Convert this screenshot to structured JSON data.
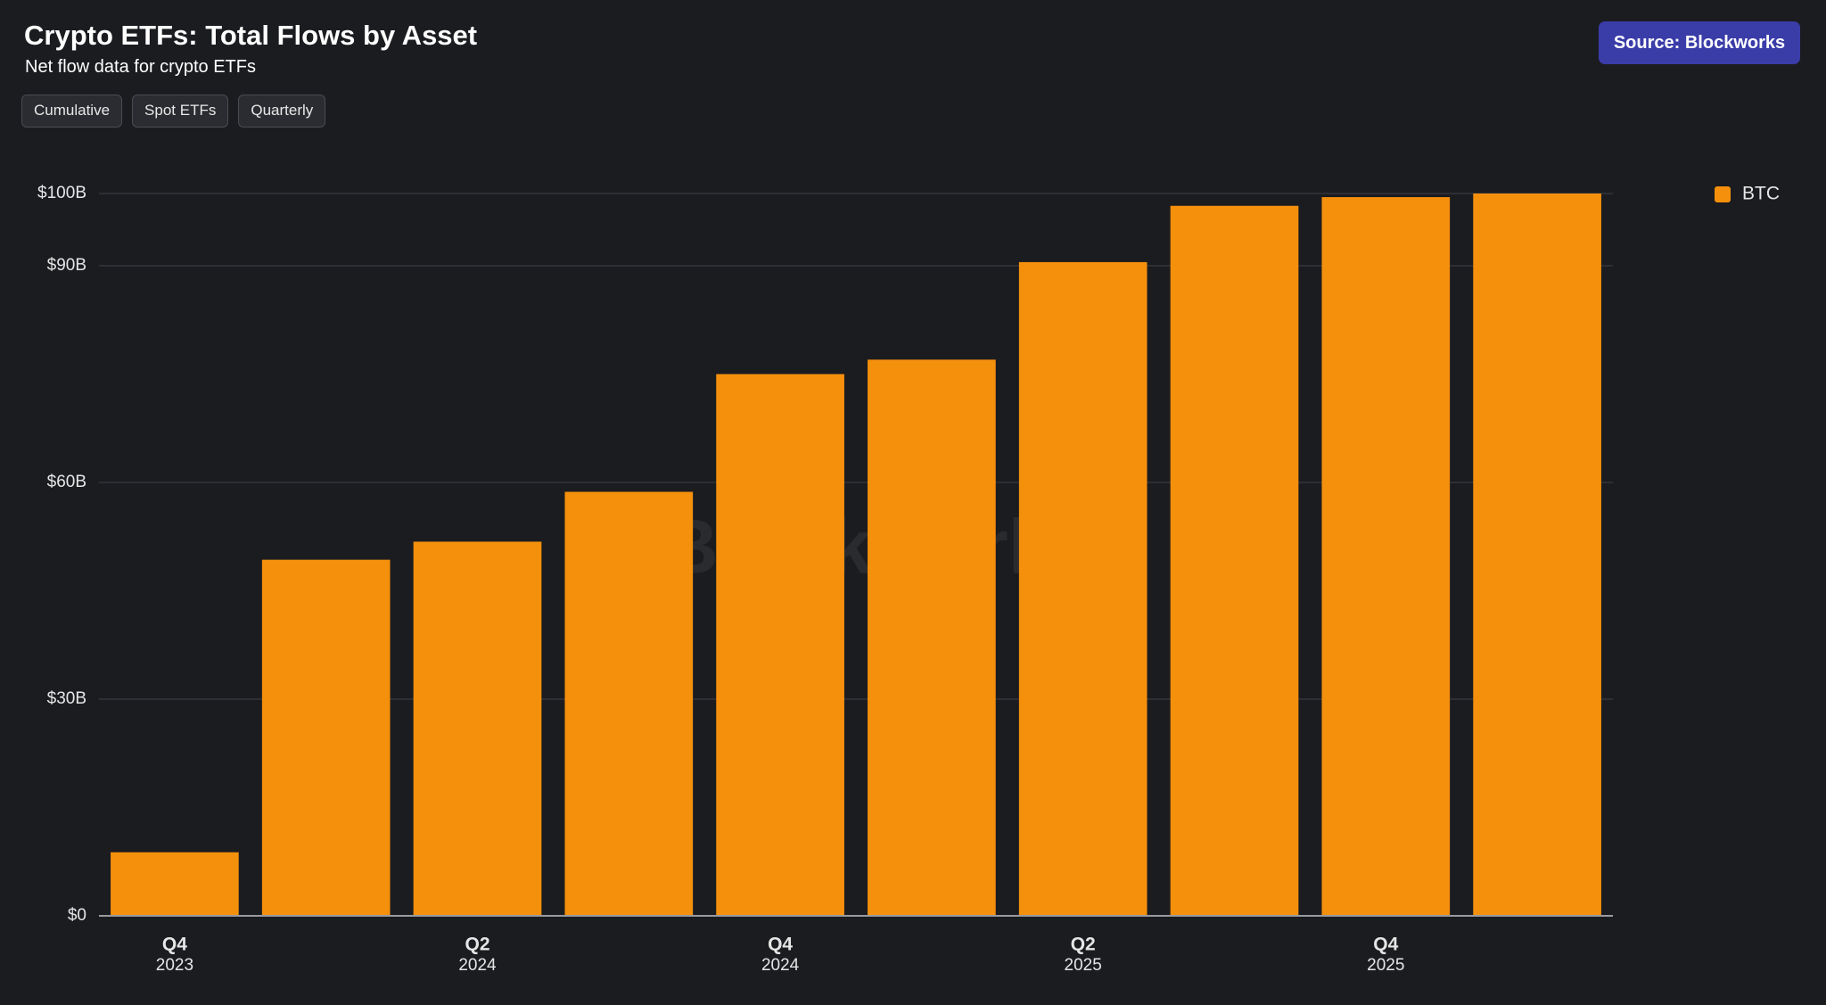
{
  "header": {
    "title": "Crypto ETFs: Total Flows by Asset",
    "subtitle": "Net flow data for crypto ETFs",
    "buttons": [
      "Cumulative",
      "Spot ETFs",
      "Quarterly"
    ],
    "source": "Source: Blockworks"
  },
  "chart_data": {
    "type": "bar",
    "watermark": "Blockworks",
    "categories": [
      {
        "quarter": "Q4",
        "year": "2023"
      },
      null,
      {
        "quarter": "Q2",
        "year": "2024"
      },
      null,
      {
        "quarter": "Q4",
        "year": "2024"
      },
      null,
      {
        "quarter": "Q2",
        "year": "2025"
      },
      null,
      {
        "quarter": "Q4",
        "year": "2025"
      },
      null
    ],
    "series": [
      {
        "name": "BTC",
        "color": "#f5900c",
        "values": [
          8.8,
          49.3,
          51.8,
          58.7,
          75.0,
          77.0,
          90.5,
          98.3,
          99.5,
          100.0
        ]
      }
    ],
    "ylim": [
      0,
      100
    ],
    "yticks": [
      {
        "value": 0,
        "label": "$0"
      },
      {
        "value": 30,
        "label": "$30B"
      },
      {
        "value": 60,
        "label": "$60B"
      },
      {
        "value": 90,
        "label": "$90B"
      },
      {
        "value": 100,
        "label": "$100B"
      }
    ],
    "grid": true,
    "legend": "top-right"
  }
}
